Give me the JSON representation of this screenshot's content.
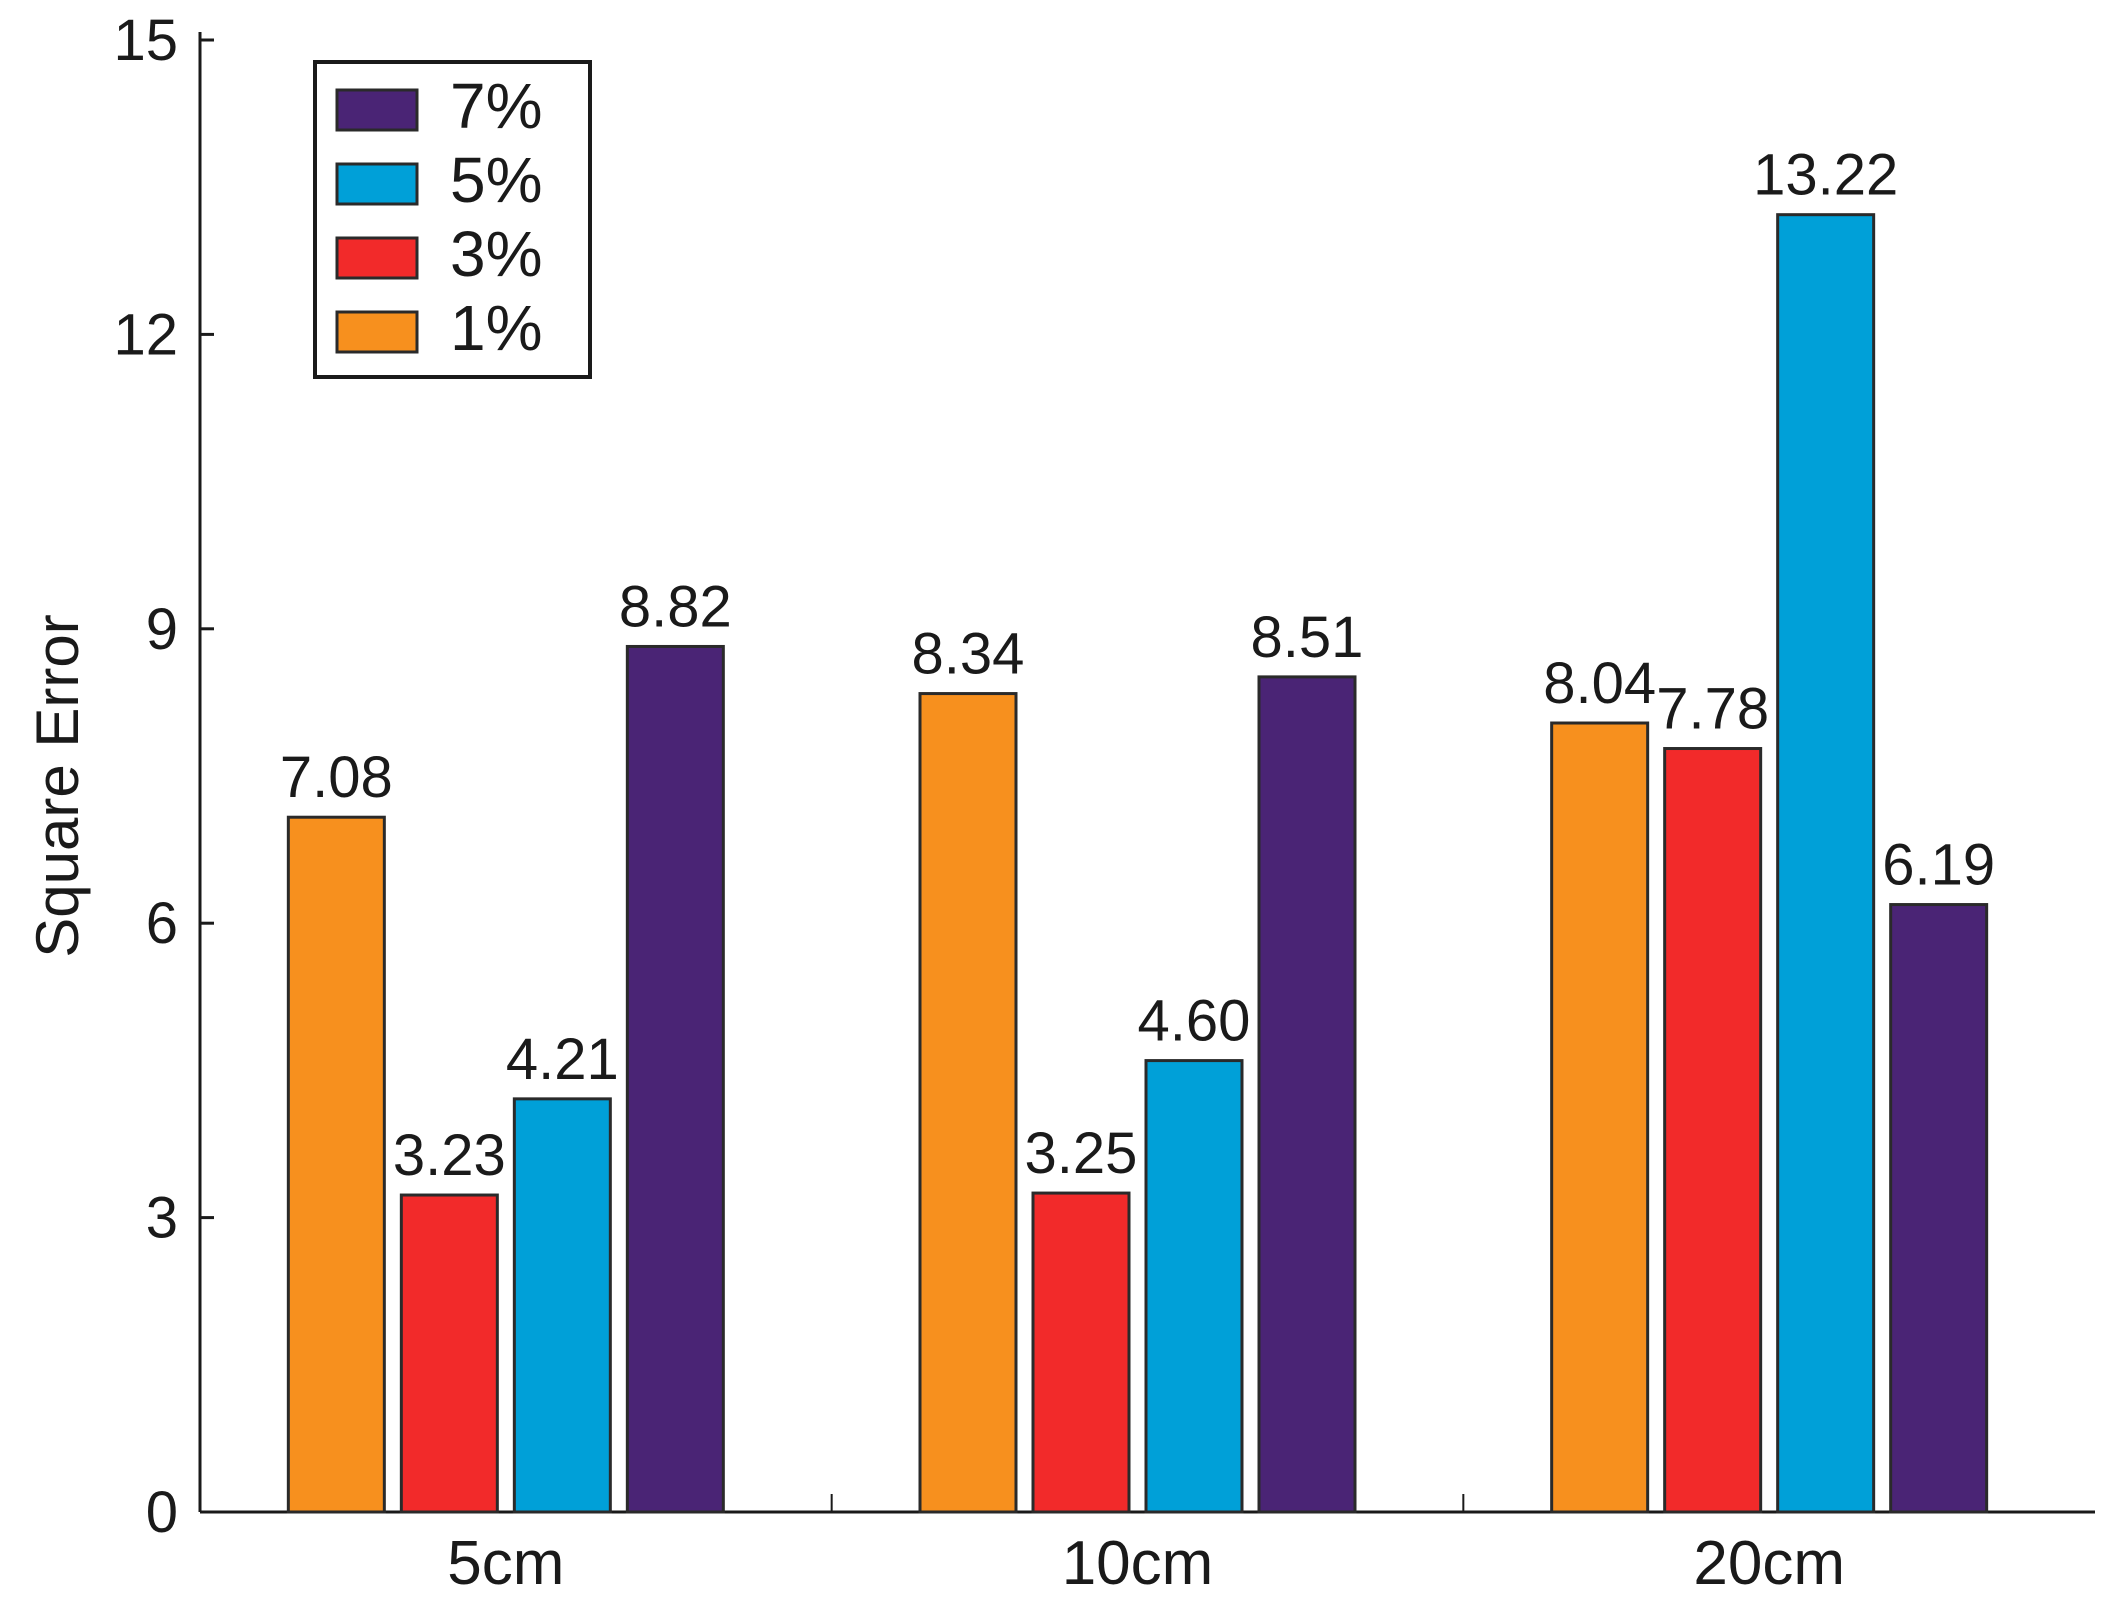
{
  "chart_data": {
    "type": "bar",
    "title": "",
    "xlabel": "",
    "ylabel": "Square Error",
    "ylim": [
      0,
      15
    ],
    "yticks": [
      0,
      3,
      6,
      9,
      12,
      15
    ],
    "grid": false,
    "legend_position": "top-left",
    "categories": [
      "5cm",
      "10cm",
      "20cm"
    ],
    "series": [
      {
        "name": "1%",
        "color": "#f7901e",
        "values": [
          7.08,
          8.34,
          8.04
        ],
        "labels": [
          "7.08",
          "8.34",
          "8.04"
        ]
      },
      {
        "name": "3%",
        "color": "#f22a2a",
        "values": [
          3.23,
          3.25,
          7.78
        ],
        "labels": [
          "3.23",
          "3.25",
          "7.78"
        ]
      },
      {
        "name": "5%",
        "color": "#00a0d8",
        "values": [
          4.21,
          4.6,
          13.22
        ],
        "labels": [
          "4.21",
          "4.60",
          "13.22"
        ]
      },
      {
        "name": "7%",
        "color": "#4a2475",
        "values": [
          8.82,
          8.51,
          6.19
        ],
        "labels": [
          "8.82",
          "8.51",
          "6.19"
        ]
      }
    ],
    "legend_order": [
      "7%",
      "5%",
      "3%",
      "1%"
    ]
  }
}
